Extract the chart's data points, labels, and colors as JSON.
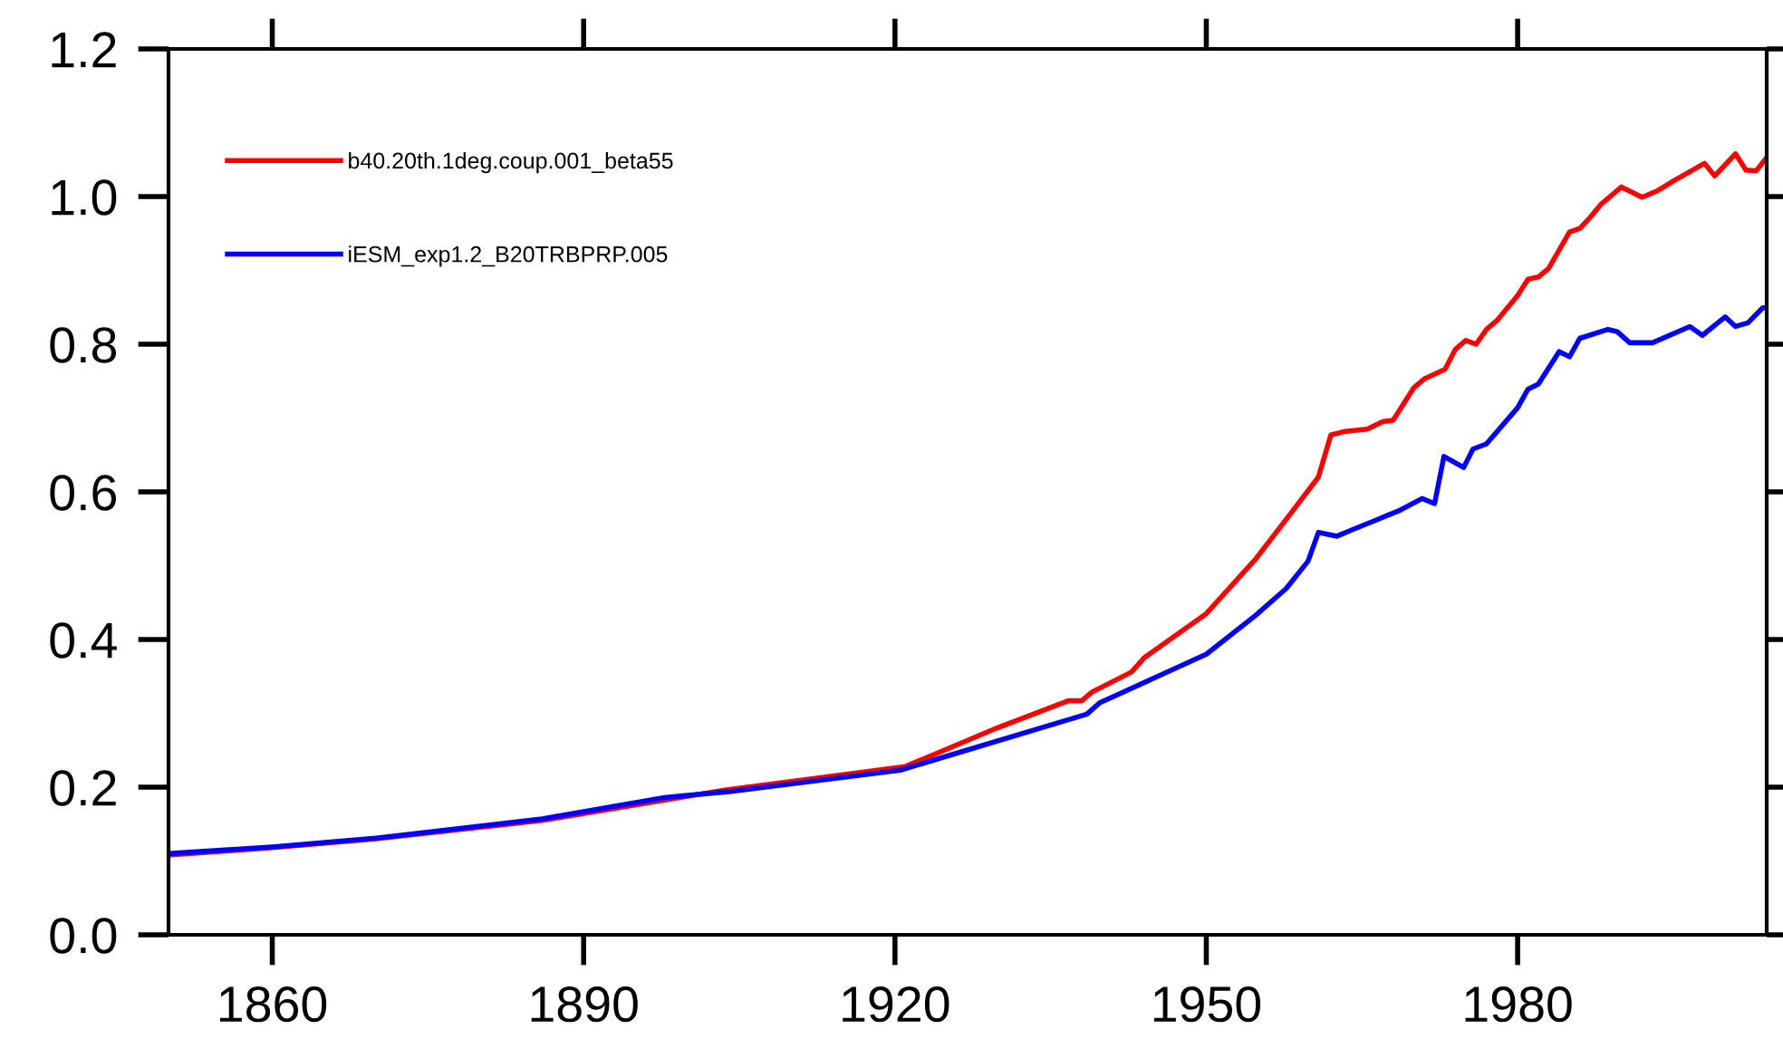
{
  "chart_data": {
    "type": "line",
    "xlim": [
      1850,
      2004
    ],
    "ylim": [
      0.0,
      1.2
    ],
    "xticks": [
      1860,
      1890,
      1920,
      1950,
      1980
    ],
    "yticks": [
      {
        "value": 0.0,
        "label": "0.0"
      },
      0.2,
      0.4,
      0.6,
      0.8,
      {
        "value": 1.0,
        "label": "1.0"
      },
      1.2
    ],
    "legend": "top left",
    "grid": false,
    "line_style": "solid",
    "marker": "none",
    "series": [
      {
        "name": "b40.20th.1deg.coup.001_beta55",
        "color": "#ff0000",
        "x": [
          1850,
          1860,
          1870,
          1886,
          1903.6,
          1921,
          1929.8,
          1936.7,
          1938,
          1939,
          1942.8,
          1944,
          1950,
          1954.7,
          1958.2,
          1960.8,
          1962,
          1963.4,
          1965.5,
          1967,
          1968,
          1970,
          1971,
          1973,
          1974,
          1975,
          1976,
          1977,
          1978,
          1980,
          1981,
          1982,
          1983,
          1985,
          1986,
          1987,
          1988,
          1990,
          1992,
          1993.5,
          1995,
          1998,
          1999,
          2001,
          2002,
          2003,
          2004
        ],
        "values": [
          0.108,
          0.118,
          0.13,
          0.155,
          0.196,
          0.228,
          0.28,
          0.317,
          0.317,
          0.329,
          0.356,
          0.375,
          0.435,
          0.508,
          0.572,
          0.62,
          0.677,
          0.682,
          0.685,
          0.695,
          0.697,
          0.741,
          0.753,
          0.766,
          0.793,
          0.805,
          0.8,
          0.82,
          0.832,
          0.866,
          0.888,
          0.891,
          0.903,
          0.952,
          0.957,
          0.972,
          0.989,
          1.013,
          0.999,
          1.008,
          1.021,
          1.045,
          1.028,
          1.058,
          1.036,
          1.035,
          1.053
        ]
      },
      {
        "name": "iESM_exp1.2_B20TRBPRP.005",
        "color": "#0000ff",
        "x": [
          1850,
          1860,
          1870,
          1886,
          1897.8,
          1904,
          1920.5,
          1938.5,
          1939.7,
          1950,
          1954.7,
          1957.7,
          1959.8,
          1960.8,
          1962.6,
          1964.3,
          1966.4,
          1968.5,
          1970.8,
          1972,
          1972.9,
          1974.8,
          1975.7,
          1977,
          1980,
          1981,
          1982,
          1984,
          1985,
          1986,
          1988.7,
          1989.6,
          1990.8,
          1993,
          1996.6,
          1997.8,
          2000,
          2001,
          2002.2,
          2003.6,
          2004
        ],
        "values": [
          0.11,
          0.119,
          0.131,
          0.157,
          0.186,
          0.194,
          0.223,
          0.299,
          0.314,
          0.38,
          0.432,
          0.469,
          0.506,
          0.545,
          0.54,
          0.55,
          0.562,
          0.574,
          0.591,
          0.584,
          0.648,
          0.633,
          0.658,
          0.665,
          0.714,
          0.739,
          0.746,
          0.79,
          0.783,
          0.808,
          0.82,
          0.817,
          0.802,
          0.802,
          0.824,
          0.812,
          0.837,
          0.824,
          0.829,
          0.849,
          0.85
        ]
      }
    ]
  }
}
